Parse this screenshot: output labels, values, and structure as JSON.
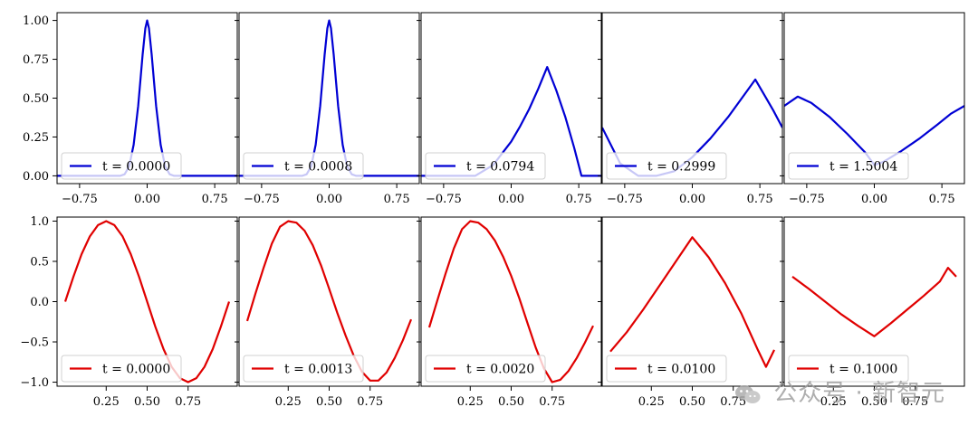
{
  "watermark": {
    "text": "公众号 · 新智元"
  },
  "colors": {
    "top": "#0000d4",
    "bottom": "#e00000"
  },
  "chart_data": [
    {
      "type": "line",
      "row": 0,
      "col": 0,
      "color": "#0000d4",
      "legend": "t = 0.0000",
      "legend_position": "lower-left",
      "xlim": [
        -1.0,
        1.0
      ],
      "ylim": [
        -0.05,
        1.05
      ],
      "xticks": [
        -0.75,
        0.0,
        0.75
      ],
      "xtick_labels": [
        "−0.75",
        "0.00",
        "0.75"
      ],
      "yticks": [
        0.0,
        0.25,
        0.5,
        0.75,
        1.0
      ],
      "ytick_labels": [
        "0.00",
        "0.25",
        "0.50",
        "0.75",
        "1.00"
      ],
      "x": [
        -1.0,
        -0.3,
        -0.25,
        -0.2,
        -0.15,
        -0.1,
        -0.05,
        -0.02,
        0.0,
        0.02,
        0.05,
        0.1,
        0.15,
        0.2,
        0.25,
        0.3,
        1.0
      ],
      "y": [
        0.0,
        0.0,
        0.01,
        0.06,
        0.2,
        0.45,
        0.78,
        0.95,
        1.0,
        0.95,
        0.78,
        0.45,
        0.2,
        0.06,
        0.01,
        0.0,
        0.0
      ]
    },
    {
      "type": "line",
      "row": 0,
      "col": 1,
      "color": "#0000d4",
      "legend": "t = 0.0008",
      "legend_position": "lower-left",
      "xlim": [
        -1.0,
        1.0
      ],
      "ylim": [
        -0.05,
        1.05
      ],
      "xticks": [
        -0.75,
        0.0,
        0.75
      ],
      "xtick_labels": [
        "−0.75",
        "0.00",
        "0.75"
      ],
      "yticks": [
        0.0,
        0.25,
        0.5,
        0.75,
        1.0
      ],
      "ytick_labels": [
        "",
        "",
        "",
        "",
        ""
      ],
      "x": [
        -1.0,
        -0.3,
        -0.25,
        -0.2,
        -0.15,
        -0.1,
        -0.05,
        -0.02,
        0.0,
        0.02,
        0.05,
        0.1,
        0.15,
        0.2,
        0.25,
        0.3,
        1.0
      ],
      "y": [
        0.0,
        0.0,
        0.01,
        0.06,
        0.2,
        0.45,
        0.78,
        0.95,
        1.0,
        0.95,
        0.78,
        0.45,
        0.2,
        0.06,
        0.01,
        0.0,
        0.0
      ]
    },
    {
      "type": "line",
      "row": 0,
      "col": 2,
      "color": "#0000d4",
      "legend": "t = 0.0794",
      "legend_position": "lower-left",
      "xlim": [
        -1.0,
        1.0
      ],
      "ylim": [
        -0.05,
        1.05
      ],
      "xticks": [
        -0.75,
        0.0,
        0.75
      ],
      "xtick_labels": [
        "−0.75",
        "0.00",
        "0.75"
      ],
      "yticks": [
        0.0,
        0.25,
        0.5,
        0.75,
        1.0
      ],
      "ytick_labels": [
        "",
        "",
        "",
        "",
        ""
      ],
      "x": [
        -1.0,
        -0.4,
        -0.2,
        0.0,
        0.1,
        0.2,
        0.3,
        0.35,
        0.4,
        0.5,
        0.6,
        0.7,
        0.78,
        1.0
      ],
      "y": [
        0.0,
        0.0,
        0.07,
        0.22,
        0.32,
        0.43,
        0.56,
        0.63,
        0.7,
        0.55,
        0.38,
        0.18,
        0.0,
        0.0
      ]
    },
    {
      "type": "line",
      "row": 0,
      "col": 3,
      "color": "#0000d4",
      "legend": "t = 0.2999",
      "legend_position": "lower-left",
      "xlim": [
        -1.0,
        1.0
      ],
      "ylim": [
        -0.05,
        1.05
      ],
      "xticks": [
        -0.75,
        0.0,
        0.75
      ],
      "xtick_labels": [
        "−0.75",
        "0.00",
        "0.75"
      ],
      "yticks": [
        0.0,
        0.25,
        0.5,
        0.75,
        1.0
      ],
      "ytick_labels": [
        "",
        "",
        "",
        "",
        ""
      ],
      "x": [
        -1.0,
        -0.8,
        -0.6,
        -0.4,
        -0.2,
        0.0,
        0.2,
        0.4,
        0.6,
        0.7,
        0.8,
        0.9,
        1.0
      ],
      "y": [
        0.31,
        0.08,
        0.0,
        0.0,
        0.03,
        0.12,
        0.24,
        0.38,
        0.54,
        0.62,
        0.52,
        0.42,
        0.31
      ]
    },
    {
      "type": "line",
      "row": 0,
      "col": 4,
      "color": "#0000d4",
      "legend": "t = 1.5004",
      "legend_position": "lower-left",
      "xlim": [
        -1.0,
        1.0
      ],
      "ylim": [
        -0.05,
        1.05
      ],
      "xticks": [
        -0.75,
        0.0,
        0.75
      ],
      "xtick_labels": [
        "−0.75",
        "0.00",
        "0.75"
      ],
      "yticks": [
        0.0,
        0.25,
        0.5,
        0.75,
        1.0
      ],
      "ytick_labels": [
        "",
        "",
        "",
        "",
        ""
      ],
      "x": [
        -1.0,
        -0.85,
        -0.7,
        -0.5,
        -0.3,
        -0.1,
        0.0,
        0.1,
        0.3,
        0.5,
        0.7,
        0.85,
        1.0
      ],
      "y": [
        0.45,
        0.51,
        0.47,
        0.38,
        0.27,
        0.15,
        0.07,
        0.09,
        0.16,
        0.24,
        0.33,
        0.4,
        0.45
      ]
    },
    {
      "type": "line",
      "row": 1,
      "col": 0,
      "color": "#e00000",
      "legend": "t = 0.0000",
      "legend_position": "lower-left",
      "xlim": [
        -0.05,
        1.05
      ],
      "ylim": [
        -1.05,
        1.05
      ],
      "xticks": [
        0.25,
        0.5,
        0.75
      ],
      "xtick_labels": [
        "0.25",
        "0.50",
        "0.75"
      ],
      "yticks": [
        -1.0,
        -0.5,
        0.0,
        0.5,
        1.0
      ],
      "ytick_labels": [
        "−1.0",
        "−0.5",
        "0.0",
        "0.5",
        "1.0"
      ],
      "x": [
        0.0,
        0.05,
        0.1,
        0.15,
        0.2,
        0.25,
        0.3,
        0.35,
        0.4,
        0.45,
        0.5,
        0.55,
        0.6,
        0.65,
        0.7,
        0.75,
        0.8,
        0.85,
        0.9,
        0.95,
        1.0
      ],
      "y": [
        0.0,
        0.31,
        0.59,
        0.81,
        0.95,
        1.0,
        0.95,
        0.81,
        0.59,
        0.31,
        0.0,
        -0.31,
        -0.59,
        -0.81,
        -0.95,
        -1.0,
        -0.95,
        -0.81,
        -0.59,
        -0.31,
        0.0
      ]
    },
    {
      "type": "line",
      "row": 1,
      "col": 1,
      "color": "#e00000",
      "legend": "t = 0.0013",
      "legend_position": "lower-left",
      "xlim": [
        -0.05,
        1.05
      ],
      "ylim": [
        -1.05,
        1.05
      ],
      "xticks": [
        0.25,
        0.5,
        0.75
      ],
      "xtick_labels": [
        "0.25",
        "0.50",
        "0.75"
      ],
      "yticks": [
        -1.0,
        -0.5,
        0.0,
        0.5,
        1.0
      ],
      "ytick_labels": [
        "",
        "",
        "",
        "",
        ""
      ],
      "x": [
        0.0,
        0.05,
        0.1,
        0.15,
        0.2,
        0.25,
        0.3,
        0.35,
        0.4,
        0.45,
        0.5,
        0.55,
        0.6,
        0.65,
        0.7,
        0.75,
        0.8,
        0.85,
        0.9,
        0.95,
        1.0
      ],
      "y": [
        -0.24,
        0.1,
        0.42,
        0.72,
        0.93,
        1.0,
        0.98,
        0.88,
        0.7,
        0.45,
        0.16,
        -0.14,
        -0.42,
        -0.67,
        -0.87,
        -0.98,
        -0.98,
        -0.88,
        -0.7,
        -0.48,
        -0.22
      ]
    },
    {
      "type": "line",
      "row": 1,
      "col": 2,
      "color": "#e00000",
      "legend": "t = 0.0020",
      "legend_position": "lower-left",
      "xlim": [
        -0.05,
        1.05
      ],
      "ylim": [
        -1.05,
        1.05
      ],
      "xticks": [
        0.25,
        0.5,
        0.75
      ],
      "xtick_labels": [
        "0.25",
        "0.50",
        "0.75"
      ],
      "yticks": [
        -1.0,
        -0.5,
        0.0,
        0.5,
        1.0
      ],
      "ytick_labels": [
        "",
        "",
        "",
        "",
        ""
      ],
      "x": [
        0.0,
        0.05,
        0.1,
        0.15,
        0.2,
        0.25,
        0.3,
        0.35,
        0.4,
        0.45,
        0.5,
        0.55,
        0.6,
        0.65,
        0.7,
        0.75,
        0.8,
        0.85,
        0.9,
        0.95,
        1.0
      ],
      "y": [
        -0.32,
        0.02,
        0.35,
        0.66,
        0.9,
        1.0,
        0.98,
        0.9,
        0.76,
        0.56,
        0.32,
        0.04,
        -0.27,
        -0.57,
        -0.83,
        -1.0,
        -0.97,
        -0.86,
        -0.7,
        -0.51,
        -0.3
      ]
    },
    {
      "type": "line",
      "row": 1,
      "col": 3,
      "color": "#e00000",
      "legend": "t = 0.0100",
      "legend_position": "lower-left",
      "xlim": [
        -0.05,
        1.05
      ],
      "ylim": [
        -1.05,
        1.05
      ],
      "xticks": [
        0.25,
        0.5,
        0.75
      ],
      "xtick_labels": [
        "0.25",
        "0.50",
        "0.75"
      ],
      "yticks": [
        -1.0,
        -0.5,
        0.0,
        0.5,
        1.0
      ],
      "ytick_labels": [
        "",
        "",
        "",
        "",
        ""
      ],
      "x": [
        0.0,
        0.1,
        0.2,
        0.3,
        0.4,
        0.5,
        0.6,
        0.7,
        0.8,
        0.9,
        0.95,
        1.0
      ],
      "y": [
        -0.62,
        -0.38,
        -0.1,
        0.2,
        0.5,
        0.8,
        0.55,
        0.23,
        -0.15,
        -0.6,
        -0.81,
        -0.6
      ]
    },
    {
      "type": "line",
      "row": 1,
      "col": 4,
      "color": "#e00000",
      "legend": "t = 0.1000",
      "legend_position": "lower-left",
      "xlim": [
        -0.05,
        1.05
      ],
      "ylim": [
        -1.05,
        1.05
      ],
      "xticks": [
        0.25,
        0.5,
        0.75
      ],
      "xtick_labels": [
        "0.25",
        "0.50",
        "0.75"
      ],
      "yticks": [
        -1.0,
        -0.5,
        0.0,
        0.5,
        1.0
      ],
      "ytick_labels": [
        "",
        "",
        "",
        "",
        ""
      ],
      "x": [
        0.0,
        0.1,
        0.2,
        0.3,
        0.4,
        0.5,
        0.6,
        0.7,
        0.8,
        0.9,
        0.95,
        1.0
      ],
      "y": [
        0.31,
        0.16,
        0.0,
        -0.16,
        -0.3,
        -0.43,
        -0.27,
        -0.1,
        0.07,
        0.25,
        0.42,
        0.31
      ]
    }
  ]
}
